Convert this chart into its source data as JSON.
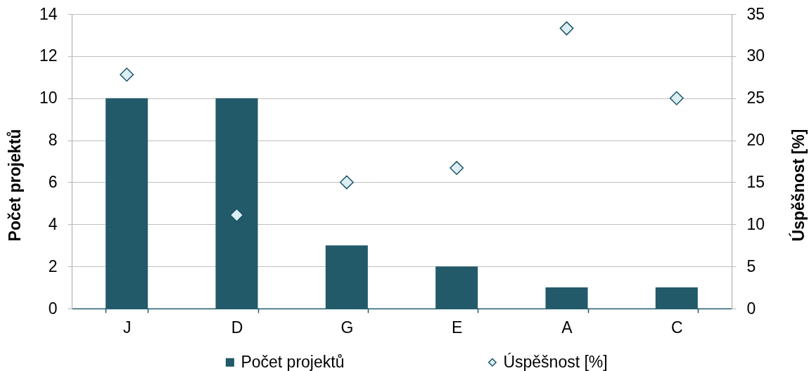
{
  "chart_data": {
    "type": "bar",
    "categories": [
      "J",
      "D",
      "G",
      "E",
      "A",
      "C"
    ],
    "ylabel": "Počet projektů",
    "y2label": "Úspěšnost [%]",
    "series": [
      {
        "name": "Počet projektů",
        "color": "#225a6a",
        "values": [
          10,
          10,
          3,
          2,
          1,
          1
        ]
      },
      {
        "name": "Úspěšnost [%]",
        "type": "scatter",
        "axis": "y2",
        "marker": "diamond",
        "color": "#dbeef3",
        "values": [
          27.8,
          11.1,
          15,
          16.7,
          33.3,
          25
        ]
      }
    ],
    "ylim": [
      0,
      14
    ],
    "yticks": [
      0,
      2,
      4,
      6,
      8,
      10,
      12,
      14
    ],
    "y2lim": [
      0,
      35
    ],
    "y2ticks": [
      0,
      5,
      10,
      15,
      20,
      25,
      30,
      35
    ],
    "grid": "y",
    "legend": "bottom"
  }
}
